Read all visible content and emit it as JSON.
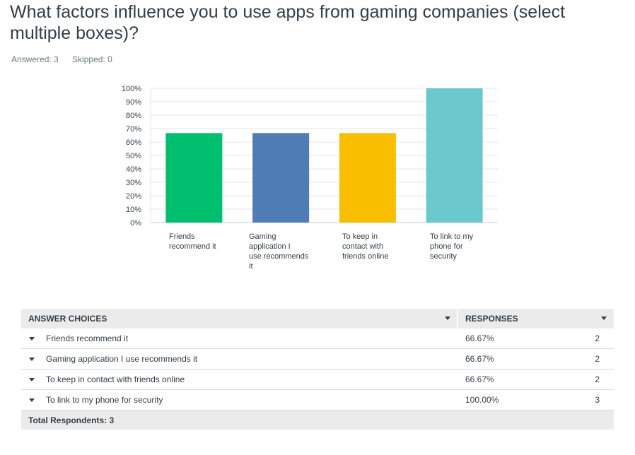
{
  "survey": {
    "question": "What factors influence you to use apps from gaming companies (select multiple boxes)?",
    "answered": "Answered: 3",
    "skipped": "Skipped: 0"
  },
  "chart_data": {
    "type": "bar",
    "categories": [
      "Friends recommend it",
      "Gaming application I use recommends it",
      "To keep in contact with friends online",
      "To link to my phone for security"
    ],
    "values": [
      66.67,
      66.67,
      66.67,
      100
    ],
    "colors": [
      "#00bf6f",
      "#507cb6",
      "#f9be00",
      "#6bc8cd"
    ],
    "ylim": [
      0,
      100
    ],
    "yticks": [
      "0%",
      "10%",
      "20%",
      "30%",
      "40%",
      "50%",
      "60%",
      "70%",
      "80%",
      "90%",
      "100%"
    ],
    "grid": true
  },
  "table": {
    "header_choice": "ANSWER CHOICES",
    "header_responses": "RESPONSES",
    "rows": [
      {
        "label": "Friends recommend it",
        "percent": "66.67%",
        "count": "2"
      },
      {
        "label": "Gaming application I use recommends it",
        "percent": "66.67%",
        "count": "2"
      },
      {
        "label": "To keep in contact with friends online",
        "percent": "66.67%",
        "count": "2"
      },
      {
        "label": "To link to my phone for security",
        "percent": "100.00%",
        "count": "3"
      }
    ],
    "total_label": "Total Respondents: 3"
  }
}
